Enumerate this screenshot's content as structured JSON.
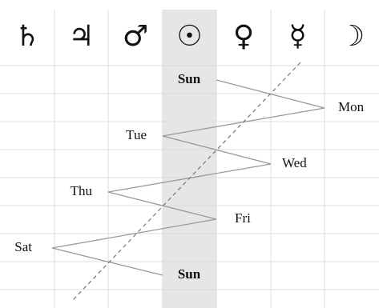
{
  "planets": [
    "♄",
    "♃",
    "♂",
    "☉",
    "♀",
    "☿",
    "☽"
  ],
  "days": [
    "Sun",
    "Mon",
    "Tue",
    "Wed",
    "Thu",
    "Fri",
    "Sat",
    "Sun"
  ]
}
